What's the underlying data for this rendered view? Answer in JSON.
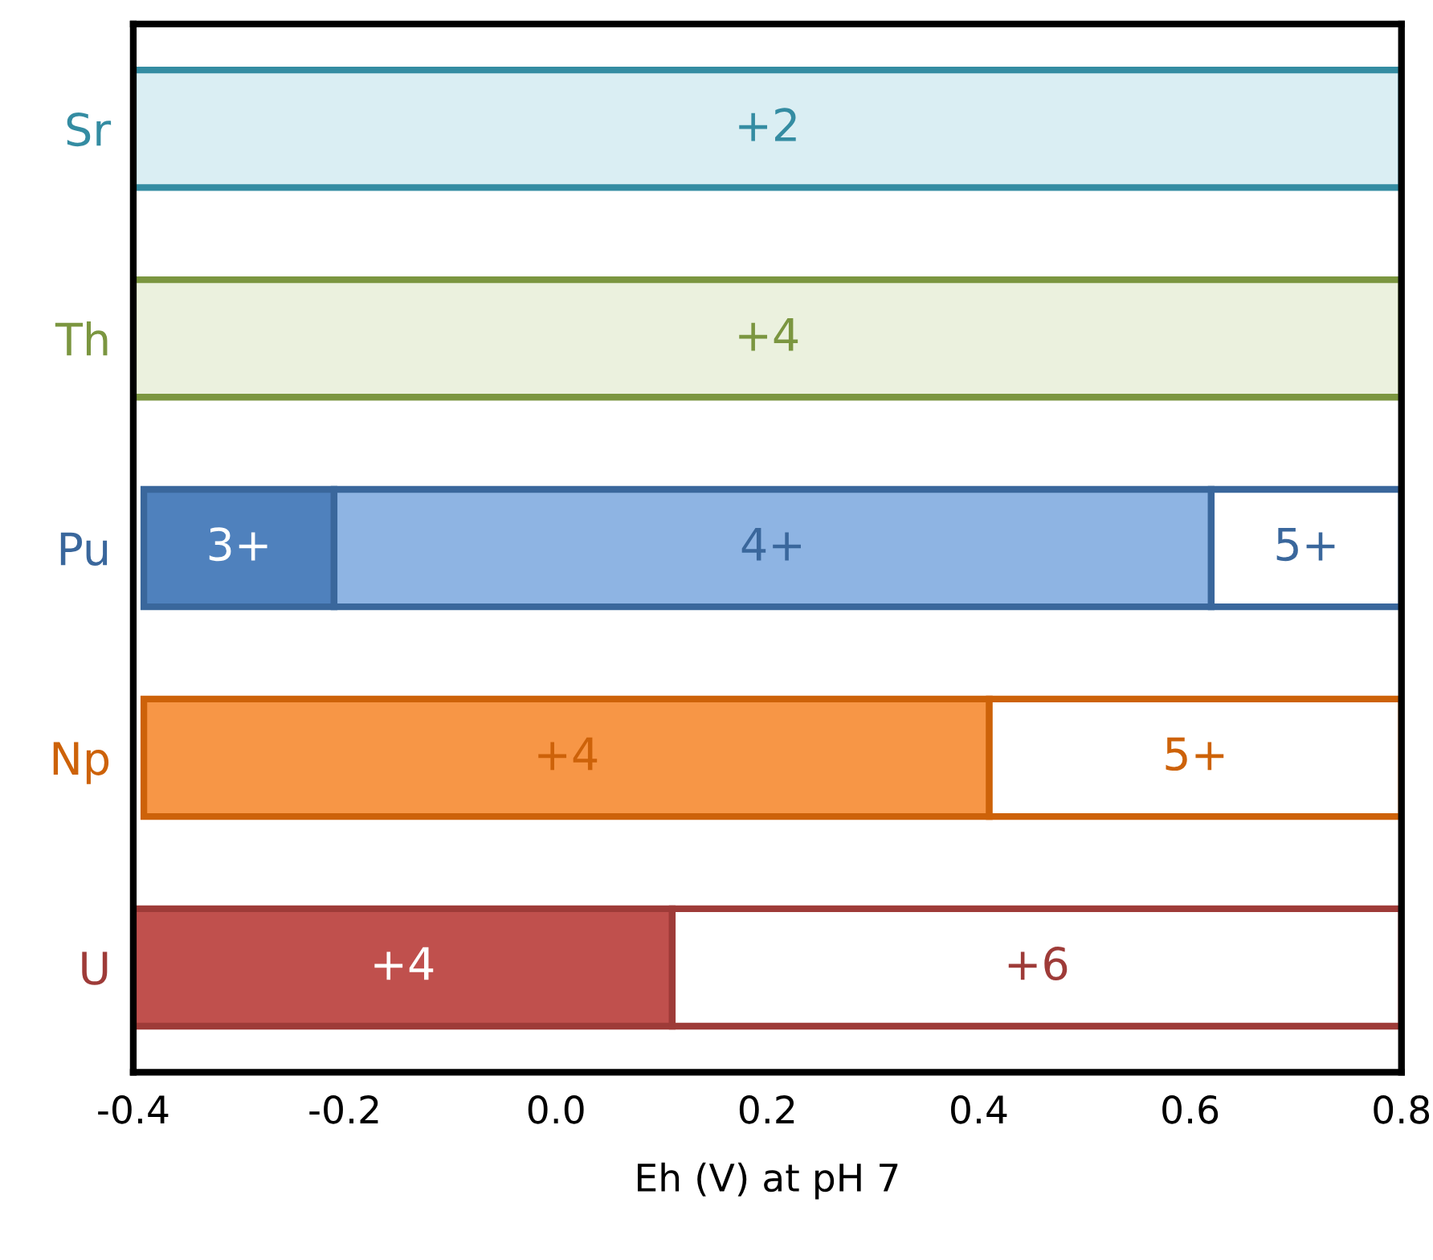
{
  "chart_data": {
    "type": "bar",
    "orientation": "horizontal",
    "xlabel": "Eh (V) at pH 7",
    "categories": [
      "Sr",
      "Th",
      "Pu",
      "Np",
      "U"
    ],
    "series": [
      {
        "base": [
          -0.4,
          -0.4,
          -0.39,
          -0.39,
          -0.4
        ],
        "values": [
          1.2,
          1.2,
          0.18,
          0.8,
          0.51
        ],
        "colors": [
          "#daeef3",
          "#ebf1de",
          "#4f81bd",
          "#f79646",
          "#c0504d"
        ]
      },
      {
        "base": [
          null,
          null,
          -0.21,
          0.41,
          0.11
        ],
        "values": [
          null,
          null,
          0.83,
          0.39,
          0.69
        ],
        "colors": [
          "#ffffff",
          "#ffffff",
          "#8eb4e3",
          "#ffffff",
          "#ffffff"
        ]
      },
      {
        "base": [
          null,
          null,
          0.62,
          null,
          null
        ],
        "values": [
          null,
          null,
          0.18,
          null,
          null
        ],
        "colors": [
          "#ffffff",
          "#ffffff",
          "#ffffff",
          "#ffffff",
          "#ffffff"
        ]
      }
    ],
    "annotations": [
      "+2",
      "+4",
      "3+",
      "4+",
      "5+",
      "+4",
      "5+",
      "+4",
      "+6"
    ],
    "xlim": [
      -0.4,
      0.8
    ],
    "xticks": [
      -0.4,
      -0.2,
      {
        "value": 0,
        "label": "0.0"
      },
      0.2,
      0.4,
      0.6,
      0.8
    ],
    "grid": false,
    "legend": false
  }
}
